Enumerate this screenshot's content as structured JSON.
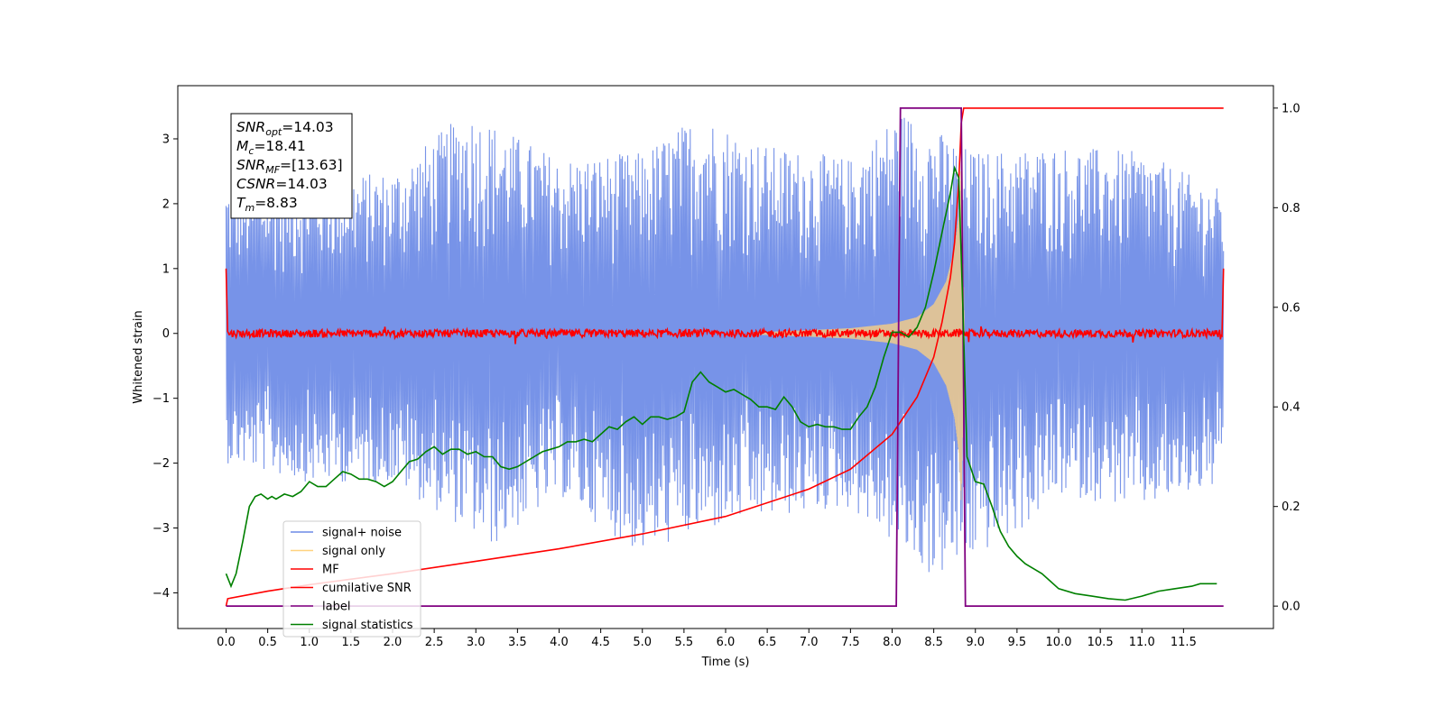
{
  "chart_data": {
    "type": "line",
    "xlabel": "Time (s)",
    "ylabel": "Whitened strain",
    "xlim": [
      -0.58,
      12.58
    ],
    "ylim": [
      -4.55,
      3.82
    ],
    "y2lim": [
      -0.045,
      1.045
    ],
    "x_ticks": [
      0.0,
      0.5,
      1.0,
      1.5,
      2.0,
      2.5,
      3.0,
      3.5,
      4.0,
      4.5,
      5.0,
      5.5,
      6.0,
      6.5,
      7.0,
      7.5,
      8.0,
      8.5,
      9.0,
      9.5,
      10.0,
      10.5,
      11.0,
      11.5
    ],
    "x_tick_labels": [
      "0.0",
      "0.5",
      "1.0",
      "1.5",
      "2.0",
      "2.5",
      "3.0",
      "3.5",
      "4.0",
      "4.5",
      "5.0",
      "5.5",
      "6.0",
      "6.5",
      "7.0",
      "7.5",
      "8.0",
      "8.5",
      "9.0",
      "9.5",
      "10.0",
      "10.5",
      "11.0",
      "11.5"
    ],
    "y_ticks": [
      -4,
      -3,
      -2,
      -1,
      0,
      1,
      2,
      3
    ],
    "y_tick_labels": [
      "−4",
      "−3",
      "−2",
      "−1",
      "0",
      "1",
      "2",
      "3"
    ],
    "y2_ticks": [
      0.0,
      0.2,
      0.4,
      0.6,
      0.8,
      1.0
    ],
    "y2_tick_labels": [
      "0.0",
      "0.2",
      "0.4",
      "0.6",
      "0.8",
      "1.0"
    ],
    "annotation": {
      "lines": [
        {
          "sym": "SNR",
          "sub": "opt",
          "value": "=14.03"
        },
        {
          "sym": "M",
          "sub": "c",
          "value": "=18.41"
        },
        {
          "sym": "SNR",
          "sub": "MF",
          "value": "=[13.63]"
        },
        {
          "sym": "CSNR",
          "sub": "",
          "value": "=14.03"
        },
        {
          "sym": "T",
          "sub": "m",
          "value": "=8.83"
        }
      ]
    },
    "legend": {
      "location": "lower left",
      "entries": [
        {
          "label": "signal+ noise",
          "color": "#6b8ae6"
        },
        {
          "label": "signal only",
          "color": "#ffd27f"
        },
        {
          "label": "MF",
          "color": "#ff0000"
        },
        {
          "label": "cumilative SNR",
          "color": "#ff0000"
        },
        {
          "label": "label",
          "color": "#800080"
        },
        {
          "label": "signal statistics",
          "color": "#008000"
        }
      ]
    },
    "series": [
      {
        "name": "signal+ noise",
        "axis": "left",
        "color": "#6b8ae6",
        "x_range": [
          0.0,
          11.98
        ],
        "envelope_upper": [
          [
            0.0,
            2.3
          ],
          [
            1.0,
            2.4
          ],
          [
            2.0,
            2.5
          ],
          [
            2.9,
            3.45
          ],
          [
            4.0,
            2.7
          ],
          [
            5.0,
            2.8
          ],
          [
            5.7,
            3.4
          ],
          [
            6.5,
            2.9
          ],
          [
            7.5,
            2.7
          ],
          [
            8.1,
            3.45
          ],
          [
            9.0,
            2.8
          ],
          [
            10.0,
            2.9
          ],
          [
            11.0,
            2.8
          ],
          [
            11.98,
            2.2
          ]
        ],
        "envelope_lower": [
          [
            0.0,
            -2.0
          ],
          [
            1.0,
            -2.3
          ],
          [
            2.0,
            -2.3
          ],
          [
            3.2,
            -3.3
          ],
          [
            4.0,
            -2.5
          ],
          [
            4.95,
            -3.4
          ],
          [
            6.2,
            -2.9
          ],
          [
            7.5,
            -2.7
          ],
          [
            8.05,
            -3.3
          ],
          [
            8.5,
            -3.8
          ],
          [
            9.5,
            -3.1
          ],
          [
            10.0,
            -2.5
          ],
          [
            11.0,
            -2.7
          ],
          [
            11.98,
            -2.35
          ]
        ]
      },
      {
        "name": "signal only",
        "axis": "left",
        "color": "#ffd27f",
        "x": [
          6.4,
          7.0,
          7.5,
          8.0,
          8.3,
          8.5,
          8.65,
          8.75,
          8.8,
          8.83,
          8.87
        ],
        "amplitude": [
          0.02,
          0.05,
          0.08,
          0.15,
          0.25,
          0.45,
          0.8,
          1.3,
          1.8,
          2.6,
          0.0
        ]
      },
      {
        "name": "MF",
        "axis": "left",
        "color": "#ff0000",
        "x_range": [
          0.0,
          11.98
        ],
        "baseline": 0.0,
        "noise_amplitude": 0.06,
        "edge_values": [
          1.0,
          1.0
        ]
      },
      {
        "name": "cumilative SNR",
        "axis": "right",
        "color": "#ff0000",
        "x": [
          0.0,
          0.02,
          0.5,
          1.0,
          2.0,
          3.0,
          4.0,
          5.0,
          6.0,
          7.0,
          7.5,
          8.0,
          8.3,
          8.5,
          8.6,
          8.7,
          8.75,
          8.8,
          8.83,
          8.86,
          9.0,
          10.0,
          11.0,
          11.98
        ],
        "y": [
          0.0,
          0.015,
          0.03,
          0.043,
          0.065,
          0.09,
          0.115,
          0.145,
          0.18,
          0.235,
          0.275,
          0.345,
          0.42,
          0.5,
          0.57,
          0.66,
          0.73,
          0.85,
          0.97,
          1.0,
          1.0,
          1.0,
          1.0,
          1.0
        ]
      },
      {
        "name": "label",
        "axis": "right",
        "color": "#800080",
        "x": [
          0.0,
          8.05,
          8.1,
          8.83,
          8.88,
          11.98
        ],
        "y": [
          0.0,
          0.0,
          1.0,
          1.0,
          0.0,
          0.0
        ]
      },
      {
        "name": "signal statistics",
        "axis": "right",
        "color": "#008000",
        "x": [
          0.0,
          0.06,
          0.12,
          0.2,
          0.28,
          0.35,
          0.42,
          0.5,
          0.55,
          0.6,
          0.7,
          0.8,
          0.9,
          1.0,
          1.1,
          1.2,
          1.3,
          1.4,
          1.5,
          1.6,
          1.7,
          1.8,
          1.9,
          2.0,
          2.1,
          2.2,
          2.3,
          2.4,
          2.5,
          2.6,
          2.7,
          2.8,
          2.9,
          3.0,
          3.1,
          3.2,
          3.3,
          3.4,
          3.5,
          3.6,
          3.7,
          3.8,
          3.9,
          4.0,
          4.1,
          4.2,
          4.3,
          4.4,
          4.5,
          4.6,
          4.7,
          4.8,
          4.9,
          5.0,
          5.1,
          5.2,
          5.3,
          5.4,
          5.5,
          5.6,
          5.7,
          5.8,
          5.9,
          6.0,
          6.1,
          6.2,
          6.3,
          6.4,
          6.5,
          6.6,
          6.7,
          6.8,
          6.9,
          7.0,
          7.1,
          7.2,
          7.3,
          7.4,
          7.5,
          7.6,
          7.7,
          7.8,
          7.9,
          8.0,
          8.1,
          8.2,
          8.3,
          8.4,
          8.5,
          8.6,
          8.7,
          8.75,
          8.8,
          8.85,
          8.9,
          9.0,
          9.1,
          9.2,
          9.3,
          9.4,
          9.5,
          9.6,
          9.7,
          9.8,
          9.9,
          10.0,
          10.2,
          10.4,
          10.6,
          10.8,
          11.0,
          11.2,
          11.4,
          11.6,
          11.7,
          11.8,
          11.9
        ],
        "y": [
          0.065,
          0.04,
          0.065,
          0.13,
          0.2,
          0.22,
          0.225,
          0.215,
          0.22,
          0.215,
          0.225,
          0.22,
          0.23,
          0.25,
          0.24,
          0.24,
          0.255,
          0.27,
          0.265,
          0.255,
          0.255,
          0.25,
          0.24,
          0.25,
          0.27,
          0.29,
          0.295,
          0.31,
          0.32,
          0.305,
          0.315,
          0.315,
          0.305,
          0.31,
          0.3,
          0.3,
          0.28,
          0.275,
          0.28,
          0.29,
          0.3,
          0.31,
          0.315,
          0.32,
          0.33,
          0.33,
          0.335,
          0.33,
          0.345,
          0.36,
          0.355,
          0.37,
          0.38,
          0.365,
          0.38,
          0.38,
          0.375,
          0.38,
          0.39,
          0.45,
          0.47,
          0.45,
          0.44,
          0.43,
          0.435,
          0.425,
          0.415,
          0.4,
          0.4,
          0.395,
          0.42,
          0.4,
          0.37,
          0.36,
          0.365,
          0.36,
          0.36,
          0.355,
          0.355,
          0.38,
          0.4,
          0.44,
          0.5,
          0.55,
          0.55,
          0.54,
          0.56,
          0.6,
          0.67,
          0.75,
          0.83,
          0.88,
          0.86,
          0.6,
          0.3,
          0.25,
          0.245,
          0.2,
          0.15,
          0.12,
          0.1,
          0.085,
          0.075,
          0.065,
          0.05,
          0.035,
          0.025,
          0.02,
          0.015,
          0.012,
          0.02,
          0.03,
          0.035,
          0.04,
          0.045,
          0.045,
          0.045
        ]
      }
    ]
  }
}
